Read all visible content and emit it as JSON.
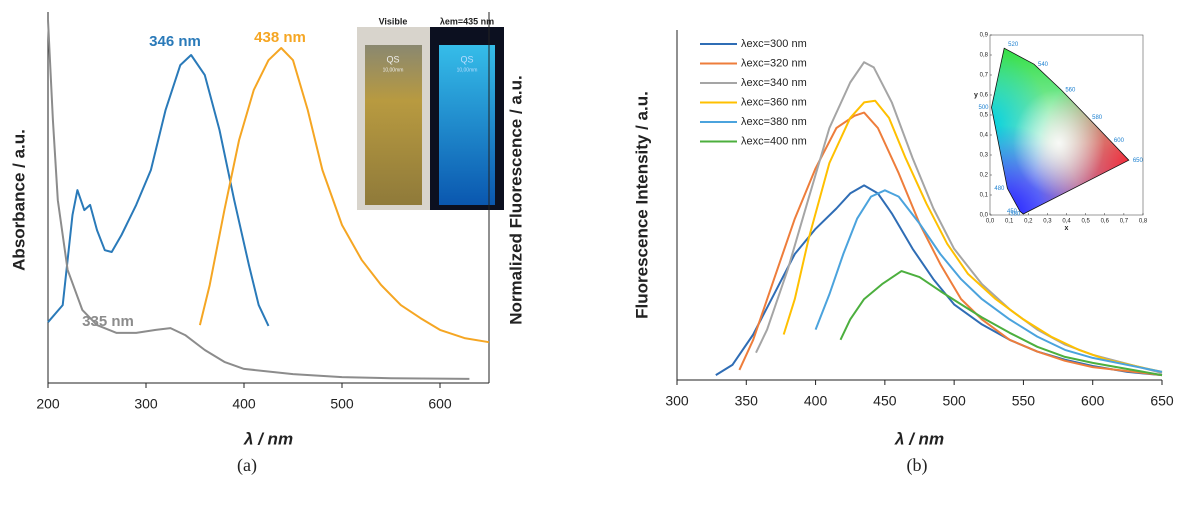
{
  "chart_data": [
    {
      "type": "line",
      "caption": "(a)",
      "xlabel": "λ / nm",
      "ylabel": "Absorbance / a.u.",
      "y2label": "Normalized Fluorescence / a.u.",
      "xlim": [
        200,
        650
      ],
      "ylim": [
        0,
        1
      ],
      "xticks": [
        200,
        300,
        400,
        500,
        600
      ],
      "series": [
        {
          "color": "#2a7ab9",
          "x": [
            200,
            215,
            225,
            230,
            237,
            243,
            250,
            258,
            265,
            275,
            290,
            305,
            320,
            335,
            346,
            360,
            375,
            390,
            405,
            415,
            425
          ],
          "values": [
            0.164,
            0.21,
            0.453,
            0.52,
            0.466,
            0.48,
            0.412,
            0.358,
            0.353,
            0.399,
            0.48,
            0.574,
            0.736,
            0.857,
            0.884,
            0.83,
            0.682,
            0.493,
            0.318,
            0.21,
            0.154
          ]
        },
        {
          "color": "#f5a623",
          "x": [
            355,
            365,
            380,
            395,
            410,
            425,
            438,
            450,
            465,
            480,
            500,
            520,
            540,
            560,
            580,
            600,
            625,
            650
          ],
          "values": [
            0.156,
            0.264,
            0.466,
            0.655,
            0.79,
            0.87,
            0.903,
            0.87,
            0.736,
            0.574,
            0.426,
            0.332,
            0.264,
            0.21,
            0.175,
            0.143,
            0.121,
            0.11
          ]
        },
        {
          "color": "#8c8c8c",
          "x": [
            200,
            205,
            210,
            220,
            235,
            250,
            270,
            290,
            310,
            325,
            340,
            360,
            380,
            400,
            450,
            500,
            550,
            630
          ],
          "values": [
            0.978,
            0.709,
            0.493,
            0.305,
            0.197,
            0.156,
            0.135,
            0.135,
            0.143,
            0.148,
            0.129,
            0.089,
            0.057,
            0.038,
            0.024,
            0.016,
            0.013,
            0.011
          ]
        }
      ],
      "annotations": [
        {
          "text": "346 nm",
          "color": "#2a7ab9"
        },
        {
          "text": "438 nm",
          "color": "#f5a623"
        },
        {
          "text": "335 nm",
          "color": "#8c8c8c"
        }
      ],
      "photos": {
        "labels": [
          "Visible",
          "λem=435 nm"
        ],
        "cuvette_text": [
          "QS",
          "10,00mm"
        ]
      }
    },
    {
      "type": "line",
      "caption": "(b)",
      "xlabel": "λ / nm",
      "ylabel": "Fluorescence Intensity / a.u.",
      "xlim": [
        300,
        650
      ],
      "ylim": [
        0,
        1
      ],
      "xticks": [
        300,
        350,
        400,
        450,
        500,
        550,
        600,
        650
      ],
      "legend": "upper left",
      "series": [
        {
          "name": "λexc=300 nm",
          "color": "#2f6db5",
          "x": [
            328,
            340,
            355,
            370,
            385,
            400,
            415,
            425,
            435,
            445,
            455,
            470,
            485,
            500,
            520,
            540,
            560,
            580,
            600,
            625,
            650
          ],
          "values": [
            0.014,
            0.043,
            0.13,
            0.245,
            0.36,
            0.432,
            0.49,
            0.533,
            0.556,
            0.533,
            0.476,
            0.375,
            0.288,
            0.216,
            0.159,
            0.115,
            0.081,
            0.058,
            0.04,
            0.023,
            0.014
          ]
        },
        {
          "name": "λexc=320 nm",
          "color": "#ee7d3b",
          "x": [
            345,
            355,
            370,
            385,
            400,
            415,
            428,
            435,
            445,
            460,
            475,
            490,
            505,
            520,
            540,
            560,
            580,
            600,
            650
          ],
          "values": [
            0.029,
            0.115,
            0.288,
            0.461,
            0.605,
            0.72,
            0.755,
            0.764,
            0.72,
            0.591,
            0.447,
            0.331,
            0.231,
            0.173,
            0.115,
            0.081,
            0.055,
            0.037,
            0.014
          ]
        },
        {
          "name": "λexc=340 nm",
          "color": "#a5a5a5",
          "x": [
            357,
            365,
            380,
            395,
            410,
            425,
            435,
            442,
            455,
            470,
            485,
            500,
            520,
            540,
            560,
            580,
            600,
            650
          ],
          "values": [
            0.078,
            0.144,
            0.317,
            0.519,
            0.72,
            0.85,
            0.908,
            0.893,
            0.793,
            0.634,
            0.49,
            0.375,
            0.274,
            0.202,
            0.144,
            0.101,
            0.072,
            0.02
          ]
        },
        {
          "name": "λexc=360 nm",
          "color": "#ffc000",
          "x": [
            377,
            385,
            395,
            410,
            425,
            435,
            443,
            453,
            465,
            480,
            495,
            510,
            530,
            550,
            570,
            590,
            610,
            650
          ],
          "values": [
            0.13,
            0.231,
            0.403,
            0.62,
            0.749,
            0.793,
            0.798,
            0.749,
            0.634,
            0.504,
            0.389,
            0.303,
            0.231,
            0.173,
            0.124,
            0.086,
            0.058,
            0.023
          ]
        },
        {
          "name": "λexc=380 nm",
          "color": "#4ba3dd",
          "x": [
            400,
            410,
            420,
            430,
            440,
            450,
            460,
            475,
            490,
            505,
            520,
            540,
            560,
            580,
            600,
            650
          ],
          "values": [
            0.144,
            0.245,
            0.36,
            0.461,
            0.524,
            0.542,
            0.524,
            0.447,
            0.36,
            0.288,
            0.231,
            0.173,
            0.124,
            0.086,
            0.063,
            0.023
          ]
        },
        {
          "name": "λexc=400 nm",
          "color": "#4caf3e",
          "x": [
            418,
            425,
            435,
            448,
            462,
            475,
            490,
            505,
            520,
            540,
            560,
            580,
            600,
            650
          ],
          "values": [
            0.115,
            0.173,
            0.231,
            0.274,
            0.311,
            0.294,
            0.254,
            0.216,
            0.179,
            0.135,
            0.095,
            0.066,
            0.049,
            0.014
          ]
        }
      ],
      "inset": {
        "type": "chromaticity",
        "xlabel": "x",
        "ylabel": "y",
        "xlim": [
          0,
          0.8
        ],
        "ylim": [
          0,
          0.9
        ],
        "xticks": [
          {
            "value": 0,
            "label": "0,0"
          },
          {
            "value": 0.1,
            "label": "0,1"
          },
          {
            "value": 0.2,
            "label": "0,2"
          },
          {
            "value": 0.3,
            "label": "0,3"
          },
          {
            "value": 0.4,
            "label": "0,4"
          },
          {
            "value": 0.5,
            "label": "0,5"
          },
          {
            "value": 0.6,
            "label": "0,6"
          },
          {
            "value": 0.7,
            "label": "0,7"
          },
          {
            "value": 0.8,
            "label": "0,8"
          }
        ],
        "yticks": [
          {
            "value": 0,
            "label": "0,0"
          },
          {
            "value": 0.1,
            "label": "0,1"
          },
          {
            "value": 0.2,
            "label": "0,2"
          },
          {
            "value": 0.3,
            "label": "0,3"
          },
          {
            "value": 0.4,
            "label": "0,4"
          },
          {
            "value": 0.5,
            "label": "0,5"
          },
          {
            "value": 0.6,
            "label": "0,6"
          },
          {
            "value": 0.7,
            "label": "0,7"
          },
          {
            "value": 0.8,
            "label": "0,8"
          },
          {
            "value": 0.9,
            "label": "0,9"
          }
        ],
        "locus": {
          "labels": [
            "380",
            "450",
            "480",
            "500",
            "520",
            "540",
            "560",
            "580",
            "600",
            "650"
          ],
          "x": [
            0.174,
            0.157,
            0.091,
            0.008,
            0.074,
            0.23,
            0.373,
            0.513,
            0.627,
            0.726
          ],
          "y": [
            0.005,
            0.018,
            0.133,
            0.538,
            0.834,
            0.754,
            0.625,
            0.487,
            0.373,
            0.274
          ]
        }
      }
    }
  ]
}
